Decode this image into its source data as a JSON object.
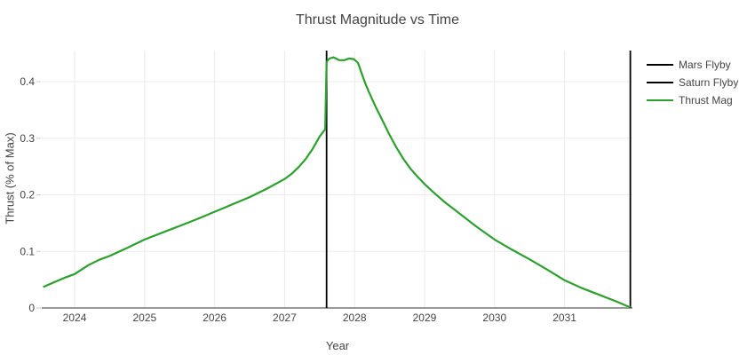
{
  "chart_data": {
    "type": "line",
    "title": "Thrust Magnitude vs Time",
    "xlabel": "Year",
    "ylabel": "Thrust (% of Max)",
    "x_range": [
      2023.53,
      2031.97
    ],
    "y_range": [
      0,
      0.455
    ],
    "x_ticks": [
      2024,
      2025,
      2026,
      2027,
      2028,
      2029,
      2030,
      2031
    ],
    "y_ticks": [
      0,
      0.1,
      0.2,
      0.3,
      0.4
    ],
    "grid": true,
    "legend_position": "top-right-outside",
    "series": [
      {
        "name": "Thrust Mag",
        "color": "#2ca02c",
        "points": [
          [
            2023.55,
            0.037
          ],
          [
            2023.7,
            0.045
          ],
          [
            2023.85,
            0.053
          ],
          [
            2024.0,
            0.06
          ],
          [
            2024.1,
            0.068
          ],
          [
            2024.2,
            0.076
          ],
          [
            2024.35,
            0.085
          ],
          [
            2024.5,
            0.092
          ],
          [
            2024.75,
            0.106
          ],
          [
            2025.0,
            0.121
          ],
          [
            2025.25,
            0.133
          ],
          [
            2025.5,
            0.145
          ],
          [
            2025.75,
            0.157
          ],
          [
            2026.0,
            0.17
          ],
          [
            2026.25,
            0.183
          ],
          [
            2026.5,
            0.196
          ],
          [
            2026.75,
            0.211
          ],
          [
            2027.0,
            0.228
          ],
          [
            2027.1,
            0.237
          ],
          [
            2027.2,
            0.249
          ],
          [
            2027.3,
            0.263
          ],
          [
            2027.4,
            0.281
          ],
          [
            2027.5,
            0.303
          ],
          [
            2027.58,
            0.316
          ],
          [
            2027.6,
            0.435
          ],
          [
            2027.64,
            0.441
          ],
          [
            2027.7,
            0.443
          ],
          [
            2027.78,
            0.438
          ],
          [
            2027.85,
            0.438
          ],
          [
            2027.92,
            0.441
          ],
          [
            2027.99,
            0.44
          ],
          [
            2028.05,
            0.433
          ],
          [
            2028.1,
            0.415
          ],
          [
            2028.15,
            0.398
          ],
          [
            2028.2,
            0.383
          ],
          [
            2028.3,
            0.356
          ],
          [
            2028.4,
            0.331
          ],
          [
            2028.5,
            0.306
          ],
          [
            2028.6,
            0.283
          ],
          [
            2028.7,
            0.263
          ],
          [
            2028.8,
            0.246
          ],
          [
            2028.9,
            0.232
          ],
          [
            2029.0,
            0.219
          ],
          [
            2029.15,
            0.202
          ],
          [
            2029.3,
            0.186
          ],
          [
            2029.5,
            0.167
          ],
          [
            2029.75,
            0.143
          ],
          [
            2030.0,
            0.121
          ],
          [
            2030.25,
            0.103
          ],
          [
            2030.5,
            0.086
          ],
          [
            2030.75,
            0.068
          ],
          [
            2031.0,
            0.049
          ],
          [
            2031.25,
            0.035
          ],
          [
            2031.5,
            0.023
          ],
          [
            2031.75,
            0.011
          ],
          [
            2031.94,
            0.001
          ]
        ]
      }
    ],
    "vlines": [
      {
        "name": "Mars Flyby",
        "x": 2027.6,
        "color": "#000000"
      },
      {
        "name": "Saturn Flyby",
        "x": 2031.94,
        "color": "#000000"
      }
    ],
    "legend": [
      {
        "label": "Mars Flyby",
        "color": "#000000"
      },
      {
        "label": "Saturn Flyby",
        "color": "#000000"
      },
      {
        "label": "Thrust Mag",
        "color": "#2ca02c"
      }
    ]
  },
  "colors": {
    "text": "#444444",
    "grid": "#ebebeb",
    "zeroline": "#999999",
    "tick": "#cccccc",
    "background": "#ffffff"
  }
}
